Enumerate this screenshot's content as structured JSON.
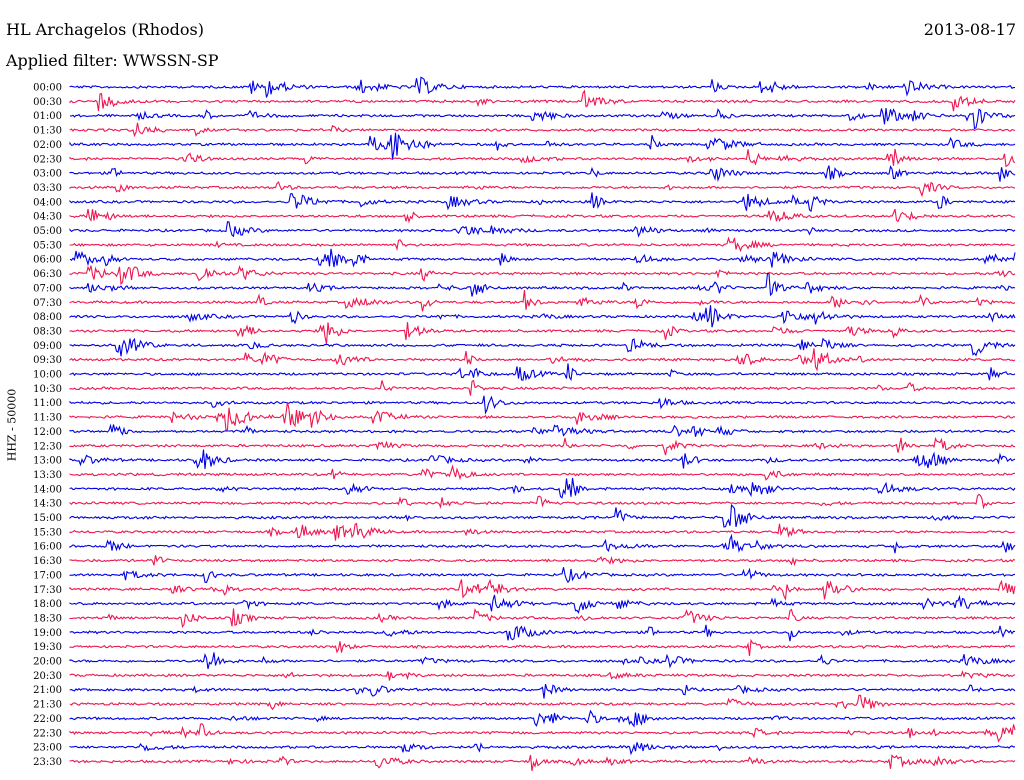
{
  "header": {
    "station": "HL Archagelos (Rhodos)",
    "date": "2013-08-17",
    "filter": "Applied filter: WWSSN-SP"
  },
  "chart_data": {
    "type": "line",
    "title": "HL Archagelos (Rhodos)",
    "ylabel": "HHZ - 50000",
    "xlabel": "",
    "tick_labels": [
      "00:00",
      "00:30",
      "01:00",
      "01:30",
      "02:00",
      "02:30",
      "03:00",
      "03:30",
      "04:00",
      "04:30",
      "05:00",
      "05:30",
      "06:00",
      "06:30",
      "07:00",
      "07:30",
      "08:00",
      "08:30",
      "09:00",
      "09:30",
      "10:00",
      "10:30",
      "11:00",
      "11:30",
      "12:00",
      "12:30",
      "13:00",
      "13:30",
      "14:00",
      "14:30",
      "15:00",
      "15:30",
      "16:00",
      "16:30",
      "17:00",
      "17:30",
      "18:00",
      "18:30",
      "19:00",
      "19:30",
      "20:00",
      "20:30",
      "21:00",
      "21:30",
      "22:00",
      "22:30",
      "23:00",
      "23:30"
    ],
    "colors": [
      "#0000e6",
      "#ee1650"
    ],
    "grid": false,
    "legend": "none"
  }
}
